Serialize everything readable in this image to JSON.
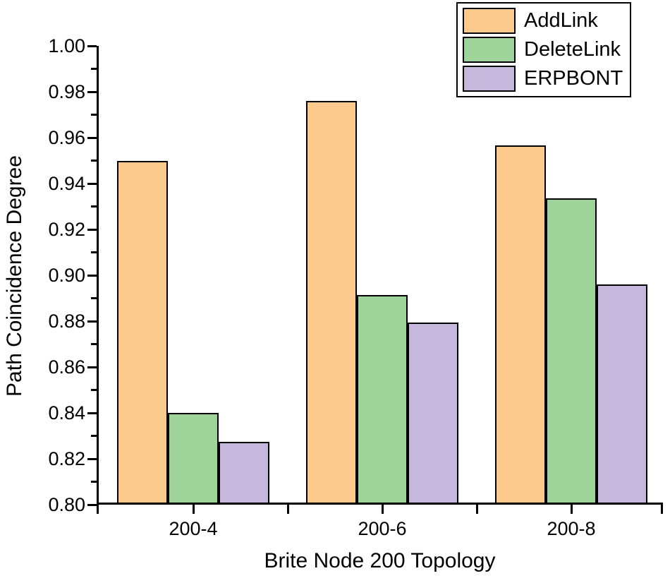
{
  "chart_data": {
    "type": "bar",
    "title": "",
    "xlabel": "Brite Node 200 Topology",
    "ylabel": "Path Coincidence Degree",
    "categories": [
      "200-4",
      "200-6",
      "200-8"
    ],
    "series": [
      {
        "name": "AddLink",
        "color": "#FBCA8C",
        "values": [
          0.95,
          0.976,
          0.9565
        ]
      },
      {
        "name": "DeleteLink",
        "color": "#9ED49A",
        "values": [
          0.84,
          0.8915,
          0.9335
        ]
      },
      {
        "name": "ERPBONT",
        "color": "#C6B7DC",
        "values": [
          0.8275,
          0.8795,
          0.896
        ]
      }
    ],
    "ylim": [
      0.8,
      1.0
    ],
    "y_major_step": 0.02,
    "y_minor_step": 0.01,
    "y_tick_labels": [
      "0.80",
      "0.82",
      "0.84",
      "0.86",
      "0.88",
      "0.90",
      "0.92",
      "0.94",
      "0.96",
      "0.98",
      "1.00"
    ],
    "grid": false,
    "legend_position": "top-right",
    "bar_edge_color": "#000000",
    "axis_color": "#000000",
    "background_color": "#ffffff"
  }
}
